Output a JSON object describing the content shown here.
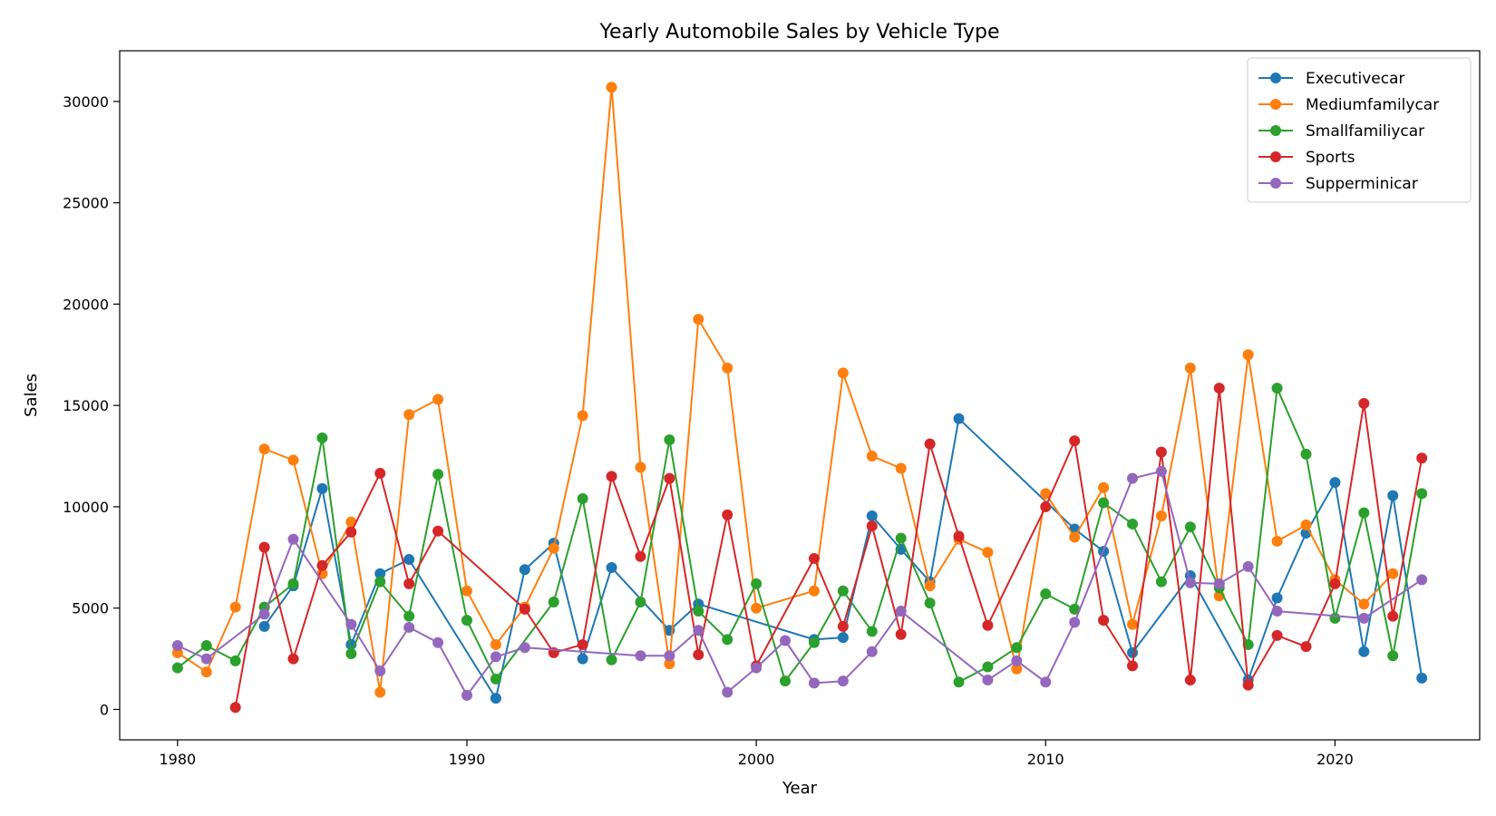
{
  "chart_data": {
    "type": "line",
    "title": "Yearly Automobile Sales by Vehicle Type",
    "xlabel": "Year",
    "ylabel": "Sales",
    "xlim": [
      1978,
      2025
    ],
    "ylim": [
      -1500,
      32500
    ],
    "xticks": [
      1980,
      1990,
      2000,
      2010,
      2020
    ],
    "yticks": [
      0,
      5000,
      10000,
      15000,
      20000,
      25000,
      30000
    ],
    "grid": false,
    "legend_position": "top-right",
    "series": [
      {
        "name": "Executivecar",
        "color": "#1f77b4",
        "x": [
          1983,
          1984,
          1985,
          1986,
          1987,
          1988,
          1991,
          1992,
          1993,
          1994,
          1995,
          1997,
          1998,
          2002,
          2003,
          2004,
          2005,
          2006,
          2007,
          2011,
          2012,
          2013,
          2015,
          2017,
          2018,
          2019,
          2020,
          2021,
          2022,
          2023
        ],
        "y": [
          4100,
          6100,
          10900,
          3200,
          6700,
          7400,
          550,
          6900,
          8200,
          2500,
          7000,
          3900,
          5200,
          3450,
          3550,
          9550,
          7900,
          6300,
          14350,
          8900,
          7800,
          2800,
          6600,
          1450,
          5500,
          8700,
          11200,
          2850,
          10550,
          1550
        ]
      },
      {
        "name": "Mediumfamilycar",
        "color": "#ff7f0e",
        "x": [
          1980,
          1981,
          1982,
          1983,
          1984,
          1985,
          1986,
          1987,
          1988,
          1989,
          1990,
          1991,
          1992,
          1993,
          1994,
          1995,
          1996,
          1997,
          1998,
          1999,
          2000,
          2002,
          2003,
          2004,
          2005,
          2006,
          2007,
          2008,
          2009,
          2010,
          2011,
          2012,
          2013,
          2014,
          2015,
          2016,
          2017,
          2018,
          2019,
          2020,
          2021,
          2022
        ],
        "y": [
          2800,
          1850,
          5050,
          12850,
          12300,
          6700,
          9250,
          850,
          14550,
          15300,
          5850,
          3200,
          5050,
          7950,
          14500,
          30700,
          11950,
          2250,
          19250,
          16850,
          5000,
          5850,
          16600,
          12500,
          11900,
          6100,
          8400,
          7750,
          2000,
          10650,
          8500,
          10950,
          4200,
          9550,
          16850,
          5600,
          17500,
          8300,
          9100,
          6400,
          5200,
          6700
        ]
      },
      {
        "name": "Smallfamiliycar",
        "color": "#2ca02c",
        "x": [
          1980,
          1981,
          1982,
          1983,
          1984,
          1985,
          1986,
          1987,
          1988,
          1989,
          1990,
          1991,
          1993,
          1994,
          1995,
          1996,
          1997,
          1998,
          1999,
          2000,
          2001,
          2002,
          2003,
          2004,
          2005,
          2006,
          2007,
          2008,
          2009,
          2010,
          2011,
          2012,
          2013,
          2014,
          2015,
          2016,
          2017,
          2018,
          2019,
          2020,
          2021,
          2022,
          2023
        ],
        "y": [
          2050,
          3150,
          2400,
          5050,
          6200,
          13400,
          2750,
          6300,
          4600,
          11600,
          4400,
          1500,
          5300,
          10400,
          2450,
          5300,
          13300,
          4850,
          3450,
          6200,
          1400,
          3300,
          5850,
          3850,
          8450,
          5250,
          1350,
          2100,
          3050,
          5700,
          4950,
          10200,
          9150,
          6300,
          9000,
          6000,
          3200,
          15850,
          12600,
          4500,
          9700,
          2650,
          10650
        ]
      },
      {
        "name": "Sports",
        "color": "#d62728",
        "x": [
          1982,
          1983,
          1984,
          1985,
          1986,
          1987,
          1988,
          1989,
          1992,
          1993,
          1994,
          1995,
          1996,
          1997,
          1998,
          1999,
          2000,
          2002,
          2003,
          2004,
          2005,
          2006,
          2007,
          2008,
          2010,
          2011,
          2012,
          2013,
          2014,
          2015,
          2016,
          2017,
          2018,
          2019,
          2020,
          2021,
          2022,
          2023
        ],
        "y": [
          100,
          8000,
          2500,
          7100,
          8750,
          11650,
          6200,
          8800,
          4950,
          2800,
          3200,
          11500,
          7550,
          11400,
          2700,
          9600,
          2150,
          7450,
          4100,
          9050,
          3700,
          13100,
          8550,
          4150,
          10000,
          13250,
          4400,
          2150,
          12700,
          1450,
          15850,
          1200,
          3650,
          3100,
          6200,
          15100,
          4600,
          12400
        ]
      },
      {
        "name": "Supperminicar",
        "color": "#9467bd",
        "x": [
          1980,
          1981,
          1983,
          1984,
          1986,
          1987,
          1988,
          1989,
          1990,
          1991,
          1992,
          1996,
          1997,
          1998,
          1999,
          2000,
          2001,
          2002,
          2003,
          2004,
          2005,
          2008,
          2009,
          2010,
          2011,
          2013,
          2014,
          2015,
          2016,
          2017,
          2018,
          2021,
          2023
        ],
        "y": [
          3150,
          2500,
          4700,
          8400,
          4200,
          1900,
          4050,
          3300,
          700,
          2600,
          3050,
          2650,
          2650,
          3900,
          850,
          2050,
          3400,
          1300,
          1400,
          2850,
          4850,
          1450,
          2400,
          1350,
          4300,
          11400,
          11750,
          6250,
          6200,
          7050,
          4850,
          4500,
          6400
        ]
      }
    ]
  }
}
